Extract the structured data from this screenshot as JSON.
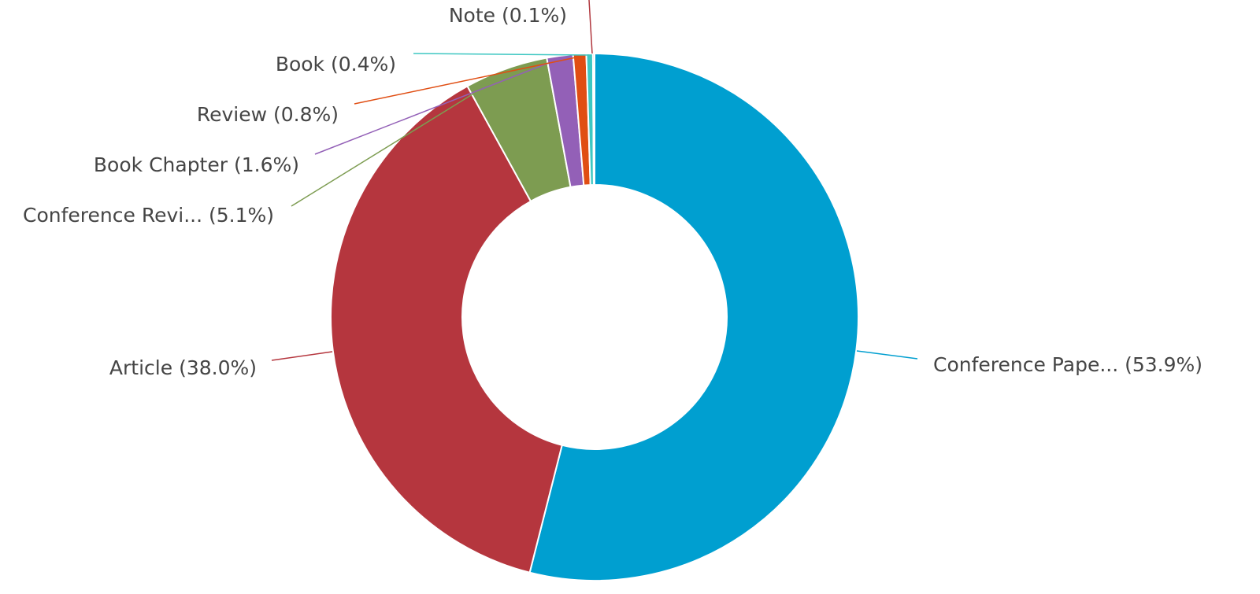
{
  "chart_data": {
    "type": "pie",
    "donut": true,
    "slices": [
      {
        "label": "Conference Pape... (53.9%)",
        "value": 53.9,
        "color": "#009fd0"
      },
      {
        "label": "Article (38.0%)",
        "value": 38.0,
        "color": "#b5363e"
      },
      {
        "label": "Conference Revi... (5.1%)",
        "value": 5.1,
        "color": "#7d9c51"
      },
      {
        "label": "Book Chapter (1.6%)",
        "value": 1.6,
        "color": "#9360b7"
      },
      {
        "label": "Review (0.8%)",
        "value": 0.8,
        "color": "#e04e13"
      },
      {
        "label": "Book (0.4%)",
        "value": 0.4,
        "color": "#3ec7c2"
      },
      {
        "label": "Note (0.1%)",
        "value": 0.1,
        "color": "#b0363d"
      }
    ]
  }
}
